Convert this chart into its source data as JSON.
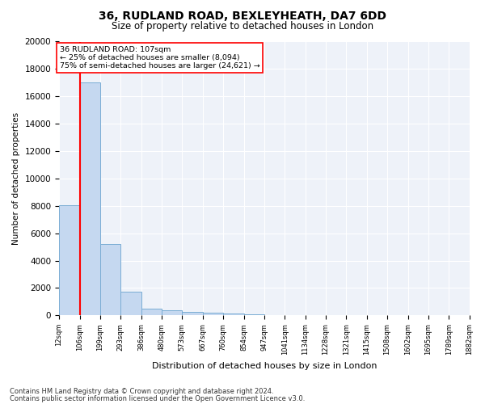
{
  "title1": "36, RUDLAND ROAD, BEXLEYHEATH, DA7 6DD",
  "title2": "Size of property relative to detached houses in London",
  "xlabel": "Distribution of detached houses by size in London",
  "ylabel": "Number of detached properties",
  "footer1": "Contains HM Land Registry data © Crown copyright and database right 2024.",
  "footer2": "Contains public sector information licensed under the Open Government Licence v3.0.",
  "bar_left_edges": [
    12,
    106,
    199,
    293,
    386,
    480,
    573,
    667,
    760,
    854,
    947,
    1041,
    1134,
    1228,
    1321,
    1415,
    1508,
    1602,
    1695,
    1789
  ],
  "bar_widths": [
    94,
    93,
    94,
    93,
    94,
    93,
    94,
    93,
    94,
    93,
    94,
    93,
    94,
    93,
    94,
    93,
    94,
    93,
    94,
    93
  ],
  "bar_heights": [
    8050,
    17000,
    5200,
    1750,
    500,
    350,
    230,
    180,
    130,
    80,
    40,
    20,
    15,
    10,
    8,
    5,
    4,
    3,
    2,
    1
  ],
  "bar_color": "#c5d8f0",
  "bar_edgecolor": "#7aadd4",
  "tick_labels": [
    "12sqm",
    "106sqm",
    "199sqm",
    "293sqm",
    "386sqm",
    "480sqm",
    "573sqm",
    "667sqm",
    "760sqm",
    "854sqm",
    "947sqm",
    "1041sqm",
    "1134sqm",
    "1228sqm",
    "1321sqm",
    "1415sqm",
    "1508sqm",
    "1602sqm",
    "1695sqm",
    "1789sqm",
    "1882sqm"
  ],
  "red_line_x": 107,
  "annotation_title": "36 RUDLAND ROAD: 107sqm",
  "annotation_line1": "← 25% of detached houses are smaller (8,094)",
  "annotation_line2": "75% of semi-detached houses are larger (24,621) →",
  "ylim": [
    0,
    20000
  ],
  "yticks": [
    0,
    2000,
    4000,
    6000,
    8000,
    10000,
    12000,
    14000,
    16000,
    18000,
    20000
  ],
  "bg_color": "#eef2f9",
  "grid_color": "#ffffff",
  "title_fontsize": 10,
  "subtitle_fontsize": 8.5
}
